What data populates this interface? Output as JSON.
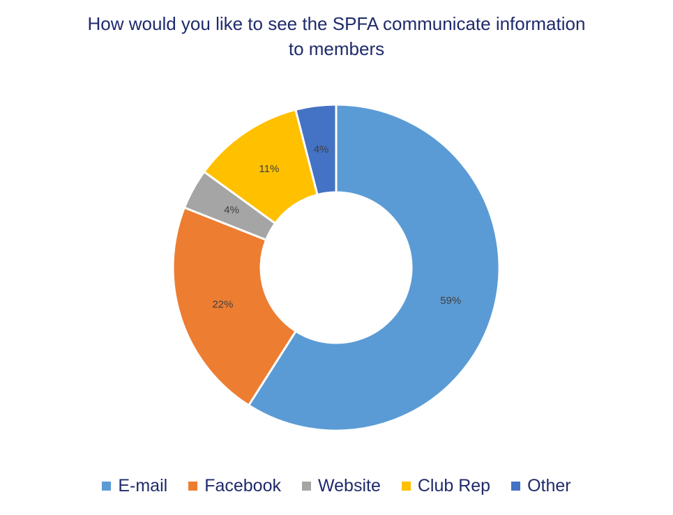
{
  "chart_data": {
    "type": "pie",
    "variant": "donut",
    "title_lines": [
      "How would you like to see the SPFA communicate information",
      "to members"
    ],
    "slices": [
      {
        "label": "E-mail",
        "value": 59,
        "data_label": "59%",
        "color": "#5b9bd5"
      },
      {
        "label": "Facebook",
        "value": 22,
        "data_label": "22%",
        "color": "#ed7d31"
      },
      {
        "label": "Website",
        "value": 4,
        "data_label": "4%",
        "color": "#a5a5a5"
      },
      {
        "label": "Club Rep",
        "value": 11,
        "data_label": "11%",
        "color": "#ffc000"
      },
      {
        "label": "Other",
        "value": 4,
        "data_label": "4%",
        "color": "#4472c4"
      }
    ],
    "legend_position": "bottom",
    "start": "12 o'clock",
    "direction": "clockwise"
  }
}
